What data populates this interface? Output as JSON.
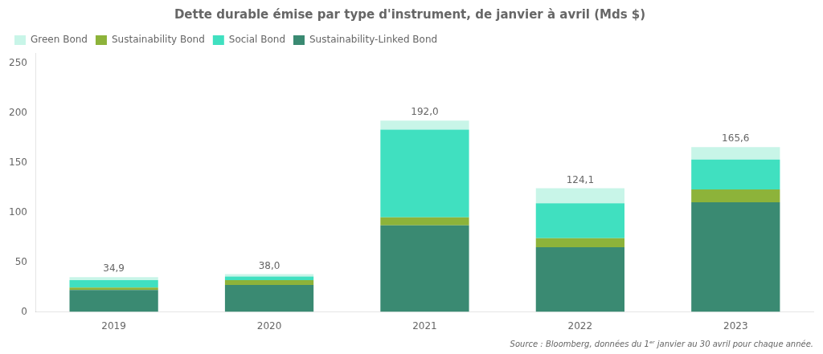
{
  "chart_data": {
    "type": "bar",
    "title": "Dette durable émise par type d'instrument, de janvier à avril (Mds $)",
    "categories": [
      "2019",
      "2020",
      "2021",
      "2022",
      "2023"
    ],
    "series": [
      {
        "name": "Sustainability-Linked Bond",
        "color": "#3a8a72",
        "values": [
          22.0,
          27.0,
          87.0,
          65.0,
          110.0
        ]
      },
      {
        "name": "Sustainability Bond",
        "color": "#8db33a",
        "values": [
          2.5,
          5.0,
          8.0,
          9.0,
          13.0
        ]
      },
      {
        "name": "Social Bond",
        "color": "#40e0c0",
        "values": [
          7.5,
          3.5,
          88.0,
          35.0,
          30.0
        ]
      },
      {
        "name": "Green Bond",
        "color": "#c8f5e8",
        "values": [
          2.9,
          2.5,
          9.0,
          15.1,
          12.6
        ]
      }
    ],
    "totals": [
      34.9,
      38.0,
      192.0,
      124.1,
      165.6
    ],
    "total_labels": [
      "34,9",
      "38,0",
      "192,0",
      "124,1",
      "165,6"
    ],
    "legend_order": [
      "Green Bond",
      "Sustainability Bond",
      "Social Bond",
      "Sustainability-Linked Bond"
    ],
    "stacked": true,
    "ylim": [
      0,
      260
    ],
    "yticks": [
      0,
      50,
      100,
      150,
      200,
      250
    ],
    "grid": false,
    "legend": "upper left",
    "source": "Source : Bloomberg, données du 1ᵉʳ janvier au 30 avril pour chaque année."
  }
}
